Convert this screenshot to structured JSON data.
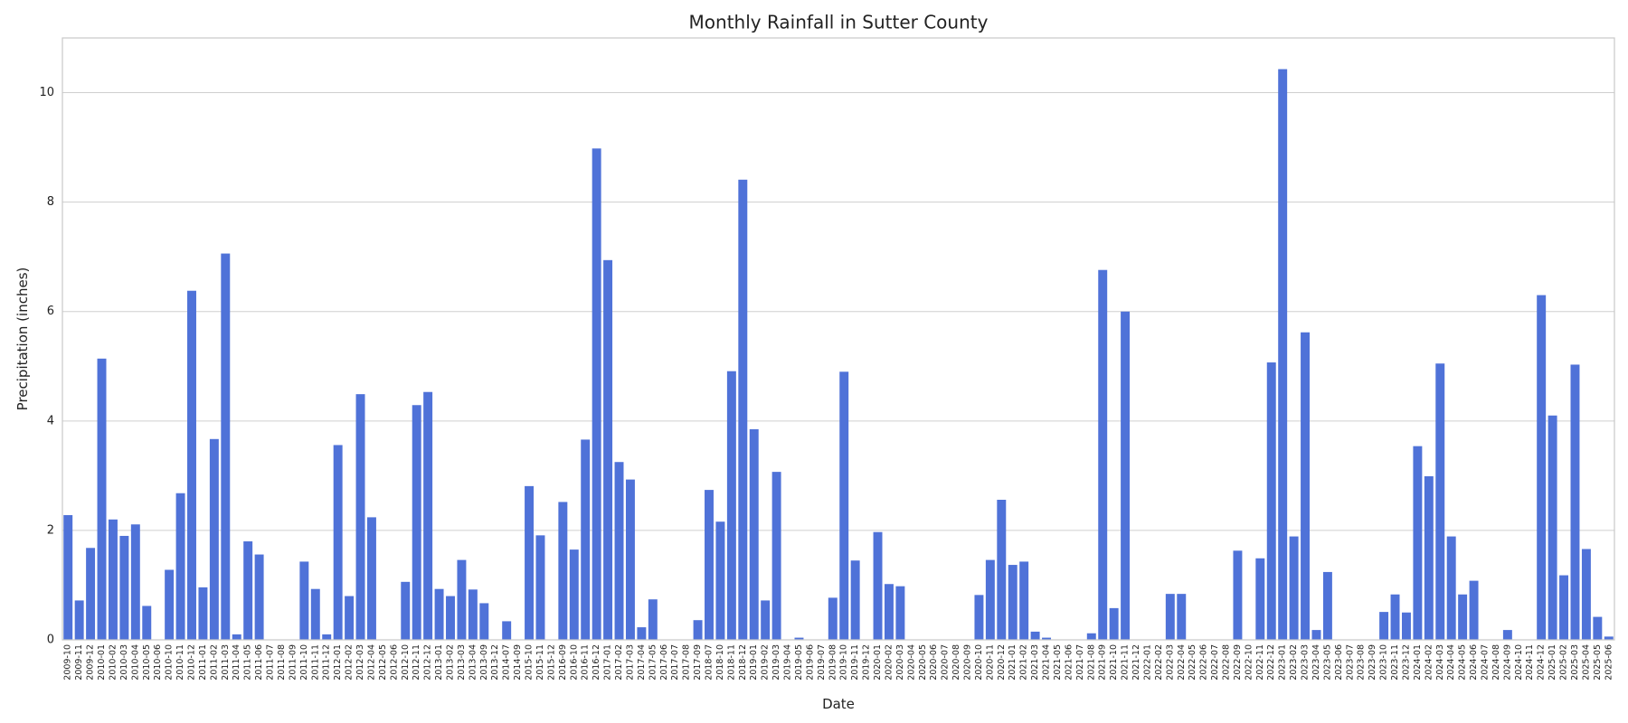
{
  "chart_data": {
    "type": "bar",
    "title": "Monthly Rainfall in Sutter County",
    "xlabel": "Date",
    "ylabel": "Precipitation (inches)",
    "ylim": [
      0,
      11
    ],
    "yticks": [
      0,
      2,
      4,
      6,
      8,
      10
    ],
    "grid": "horizontal",
    "bar_color": "#4f72d8",
    "categories": [
      "2009-10",
      "2009-11",
      "2009-12",
      "2010-01",
      "2010-02",
      "2010-03",
      "2010-04",
      "2010-05",
      "2010-06",
      "2010-10",
      "2010-11",
      "2010-12",
      "2011-01",
      "2011-02",
      "2011-03",
      "2011-04",
      "2011-05",
      "2011-06",
      "2011-07",
      "2011-08",
      "2011-09",
      "2011-10",
      "2011-11",
      "2011-12",
      "2012-01",
      "2012-02",
      "2012-03",
      "2012-04",
      "2012-05",
      "2012-06",
      "2012-10",
      "2012-11",
      "2012-12",
      "2013-01",
      "2013-02",
      "2013-03",
      "2013-04",
      "2013-09",
      "2013-12",
      "2014-07",
      "2014-09",
      "2015-10",
      "2015-11",
      "2015-12",
      "2016-09",
      "2016-10",
      "2016-11",
      "2016-12",
      "2017-01",
      "2017-02",
      "2017-03",
      "2017-04",
      "2017-05",
      "2017-06",
      "2017-07",
      "2017-08",
      "2017-09",
      "2018-07",
      "2018-10",
      "2018-11",
      "2018-12",
      "2019-01",
      "2019-02",
      "2019-03",
      "2019-04",
      "2019-05",
      "2019-06",
      "2019-07",
      "2019-08",
      "2019-10",
      "2019-11",
      "2019-12",
      "2020-01",
      "2020-02",
      "2020-03",
      "2020-04",
      "2020-05",
      "2020-06",
      "2020-07",
      "2020-08",
      "2020-09",
      "2020-10",
      "2020-11",
      "2020-12",
      "2021-01",
      "2021-02",
      "2021-03",
      "2021-04",
      "2021-05",
      "2021-06",
      "2021-07",
      "2021-08",
      "2021-09",
      "2021-10",
      "2021-11",
      "2021-12",
      "2022-01",
      "2022-02",
      "2022-03",
      "2022-04",
      "2022-05",
      "2022-06",
      "2022-07",
      "2022-08",
      "2022-09",
      "2022-10",
      "2022-11",
      "2022-12",
      "2023-01",
      "2023-02",
      "2023-03",
      "2023-04",
      "2023-05",
      "2023-06",
      "2023-07",
      "2023-08",
      "2023-09",
      "2023-10",
      "2023-11",
      "2023-12",
      "2024-01",
      "2024-02",
      "2024-03",
      "2024-04",
      "2024-05",
      "2024-06",
      "2024-07",
      "2024-08",
      "2024-09",
      "2024-10",
      "2024-11",
      "2024-12",
      "2025-01",
      "2025-02",
      "2025-03",
      "2025-04",
      "2025-05",
      "2025-06"
    ],
    "values": [
      2.28,
      0.72,
      1.68,
      5.14,
      2.2,
      1.9,
      2.11,
      0.62,
      0.0,
      1.28,
      2.68,
      6.38,
      0.96,
      3.67,
      7.06,
      0.1,
      1.8,
      1.56,
      0.0,
      0.0,
      0.0,
      1.43,
      0.93,
      0.1,
      3.56,
      0.8,
      4.49,
      2.24,
      0.0,
      0.0,
      1.06,
      4.29,
      4.53,
      0.93,
      0.8,
      1.46,
      0.92,
      0.67,
      0.0,
      0.34,
      0.0,
      2.81,
      1.91,
      0.0,
      2.52,
      1.65,
      3.66,
      8.98,
      6.94,
      3.25,
      2.93,
      0.23,
      0.74,
      0.0,
      0.0,
      0.0,
      0.36,
      2.74,
      2.16,
      4.91,
      8.41,
      3.85,
      0.72,
      3.07,
      0.0,
      0.04,
      0.0,
      0.0,
      0.77,
      4.9,
      1.45,
      0.0,
      1.97,
      1.02,
      0.98,
      0.0,
      0.0,
      0.0,
      0.0,
      0.0,
      0.0,
      0.82,
      1.46,
      2.56,
      1.37,
      1.43,
      0.15,
      0.04,
      0.0,
      0.0,
      0.0,
      0.12,
      6.76,
      0.58,
      6.0,
      0.0,
      0.0,
      0.0,
      0.84,
      0.84,
      0.0,
      0.0,
      0.0,
      0.0,
      1.63,
      0.0,
      1.49,
      5.07,
      10.43,
      1.89,
      5.62,
      0.18,
      1.24,
      0.0,
      0.0,
      0.0,
      0.0,
      0.51,
      0.83,
      0.5,
      3.54,
      2.99,
      5.05,
      1.89,
      0.83,
      1.08,
      0.0,
      0.0,
      0.18,
      0.0,
      0.0,
      6.3,
      4.1,
      1.18,
      5.03,
      1.66,
      0.42,
      0.06
    ]
  }
}
